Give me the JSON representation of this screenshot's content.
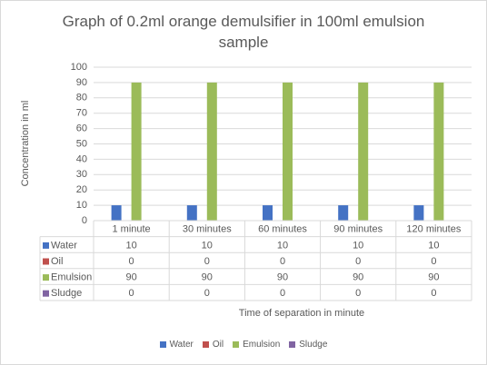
{
  "chart_data": {
    "type": "bar",
    "title": "Graph of 0.2ml orange demulsifier in 100ml emulsion sample",
    "xlabel": "Time of separation in minute",
    "ylabel": "Concentration in ml",
    "categories": [
      "1 minute",
      "30 minutes",
      "60 minutes",
      "90 minutes",
      "120 minutes"
    ],
    "ylim": [
      0,
      100
    ],
    "yticks": [
      0,
      10,
      20,
      30,
      40,
      50,
      60,
      70,
      80,
      90,
      100
    ],
    "grid": true,
    "legend_position": "bottom",
    "data_table": true,
    "series": [
      {
        "name": "Water",
        "color": "#4472c4",
        "values": [
          10,
          10,
          10,
          10,
          10
        ]
      },
      {
        "name": "Oil",
        "color": "#c0504d",
        "values": [
          0,
          0,
          0,
          0,
          0
        ]
      },
      {
        "name": "Emulsion",
        "color": "#9bbb59",
        "values": [
          90,
          90,
          90,
          90,
          90
        ]
      },
      {
        "name": "Sludge",
        "color": "#8064a2",
        "values": [
          0,
          0,
          0,
          0,
          0
        ]
      }
    ]
  }
}
